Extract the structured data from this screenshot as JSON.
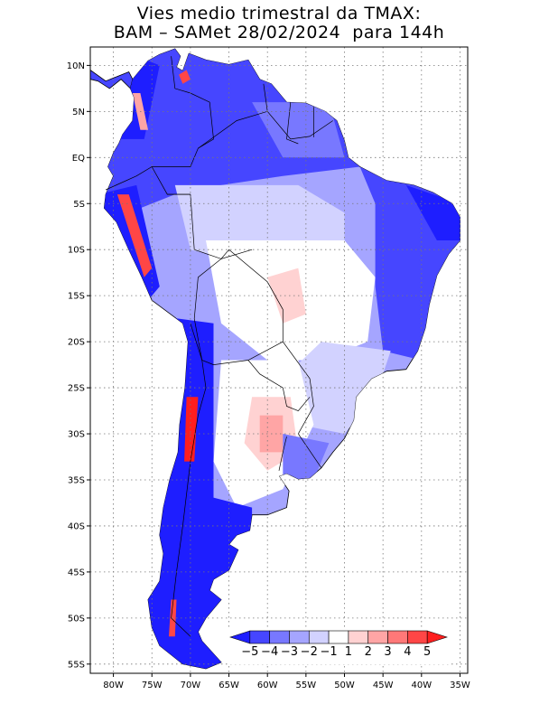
{
  "title": {
    "line1": "Vies medio trimestral da TMAX:",
    "line2": "BAM – SAMet 28/02/2024  para 144h"
  },
  "axes": {
    "lon_ticks": [
      {
        "value": -80,
        "label": "80W"
      },
      {
        "value": -75,
        "label": "75W"
      },
      {
        "value": -70,
        "label": "70W"
      },
      {
        "value": -65,
        "label": "65W"
      },
      {
        "value": -60,
        "label": "60W"
      },
      {
        "value": -55,
        "label": "55W"
      },
      {
        "value": -50,
        "label": "50W"
      },
      {
        "value": -45,
        "label": "45W"
      },
      {
        "value": -40,
        "label": "40W"
      },
      {
        "value": -35,
        "label": "35W"
      }
    ],
    "lat_ticks": [
      {
        "value": 10,
        "label": "10N"
      },
      {
        "value": 5,
        "label": "5N"
      },
      {
        "value": 0,
        "label": "EQ"
      },
      {
        "value": -5,
        "label": "5S"
      },
      {
        "value": -10,
        "label": "10S"
      },
      {
        "value": -15,
        "label": "15S"
      },
      {
        "value": -20,
        "label": "20S"
      },
      {
        "value": -25,
        "label": "25S"
      },
      {
        "value": -30,
        "label": "30S"
      },
      {
        "value": -35,
        "label": "35S"
      },
      {
        "value": -40,
        "label": "40S"
      },
      {
        "value": -45,
        "label": "45S"
      },
      {
        "value": -50,
        "label": "50S"
      },
      {
        "value": -55,
        "label": "55S"
      }
    ],
    "lon_range": [
      -83,
      -34
    ],
    "lat_range": [
      -56,
      12
    ],
    "grid": true
  },
  "colorbar": {
    "labels": [
      "−5",
      "−4",
      "−3",
      "−2",
      "−1",
      "1",
      "2",
      "3",
      "4",
      "5"
    ],
    "colors": [
      "#1e1eff",
      "#4646ff",
      "#7878ff",
      "#a5a5ff",
      "#d2d2ff",
      "#ffffff",
      "#ffd2d2",
      "#ffa5a5",
      "#ff7878",
      "#ff4646",
      "#ff1e1e"
    ]
  },
  "field_colors": {
    "deep_blue": "#1e1eff",
    "blue": "#4646ff",
    "mid_blue": "#7878ff",
    "light_blue": "#a5a5ff",
    "pale_blue": "#d2d2ff",
    "white": "#ffffff",
    "pale_red": "#ffd2d2",
    "light_red": "#ffa5a5",
    "red": "#ff4646",
    "deep_red": "#ff1e1e"
  }
}
